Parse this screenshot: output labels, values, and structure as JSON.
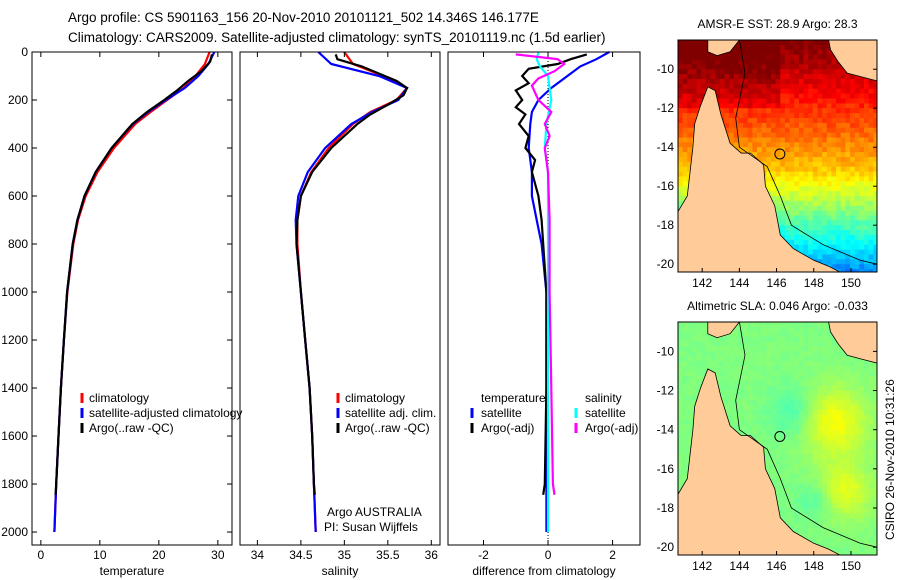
{
  "header": {
    "line1": "Argo profile: CS 5901163_156 20-Nov-2010 20101121_502 14.346S 146.177E",
    "line2": "Climatology: CARS2009. Satellite-adjusted climatology: synTS_20101119.nc (1.5d earlier)"
  },
  "side_stamp": "CSIRO 26-Nov-2010 10:31:26",
  "annotation": {
    "line1": "Argo AUSTRALIA",
    "line2": "PI: Susan Wijffels"
  },
  "colors": {
    "climatology": "#ff0000",
    "satellite": "#0000ff",
    "argo": "#000000",
    "sal_satellite": "#00ffff",
    "sal_argo": "#ff00ff",
    "land": "#ffcc99"
  },
  "chart_data": [
    {
      "type": "line",
      "xlabel": "temperature",
      "ylabel": "",
      "xlim": [
        -1.5,
        32.4
      ],
      "ylim": [
        0,
        2054
      ],
      "y_inverted": true,
      "xticks": [
        0,
        10,
        20,
        30
      ],
      "xtick_labels": [
        "0",
        "10",
        "20",
        "30"
      ],
      "yticks": [
        0,
        200,
        400,
        600,
        800,
        1000,
        1200,
        1400,
        1600,
        1800,
        2000
      ],
      "ytick_labels": [
        "0",
        "200",
        "400",
        "600",
        "800",
        "1000",
        "1200",
        "1400",
        "1600",
        "1800",
        "2000"
      ],
      "legend": [
        "climatology",
        "satellite-adjusted climatology",
        "Argo(..raw -QC)"
      ],
      "series": [
        {
          "name": "climatology",
          "color": "#ff0000",
          "p": [
            0,
            50,
            100,
            150,
            200,
            250,
            300,
            400,
            500,
            600,
            700,
            800,
            1000,
            1200,
            1400,
            1600,
            1800,
            2000
          ],
          "x": [
            28.6,
            27.8,
            26.2,
            24.2,
            21.4,
            18.6,
            16.0,
            12.4,
            9.6,
            7.6,
            6.3,
            5.5,
            4.5,
            3.9,
            3.4,
            3.0,
            2.6,
            2.3
          ]
        },
        {
          "name": "satellite-adjusted climatology",
          "color": "#0000ff",
          "p": [
            0,
            50,
            100,
            150,
            200,
            250,
            300,
            400,
            500,
            600,
            700,
            800,
            1000,
            1200,
            1400,
            1600,
            1800,
            2000
          ],
          "x": [
            29.4,
            28.4,
            26.7,
            24.4,
            21.2,
            18.2,
            15.6,
            12.0,
            9.3,
            7.4,
            6.2,
            5.4,
            4.45,
            3.9,
            3.4,
            3.0,
            2.6,
            2.3
          ]
        },
        {
          "name": "Argo(..raw -QC)",
          "color": "#000000",
          "p": [
            10,
            40,
            80,
            120,
            160,
            200,
            250,
            300,
            400,
            500,
            600,
            700,
            800,
            1000,
            1200,
            1400,
            1600,
            1800,
            1845
          ],
          "x": [
            29.0,
            28.7,
            27.2,
            25.0,
            23.1,
            20.9,
            18.0,
            15.5,
            12.0,
            9.3,
            7.4,
            6.2,
            5.4,
            4.45,
            3.9,
            3.4,
            3.0,
            2.6,
            2.5
          ]
        }
      ]
    },
    {
      "type": "line",
      "xlabel": "salinity",
      "xlim": [
        33.8,
        36.1
      ],
      "ylim": [
        0,
        2054
      ],
      "y_inverted": true,
      "xticks": [
        34,
        34.5,
        35,
        35.5,
        36
      ],
      "xtick_labels": [
        "34",
        "34.5",
        "35",
        "35.5",
        "36"
      ],
      "yticks": [],
      "ytick_labels": [],
      "legend": [
        "climatology",
        "satellite adj. clim.",
        "Argo(..raw -QC)"
      ],
      "series": [
        {
          "name": "climatology",
          "color": "#ff0000",
          "p": [
            0,
            50,
            100,
            150,
            200,
            250,
            300,
            400,
            500,
            600,
            700,
            800,
            1000,
            1200,
            1400,
            1600,
            1800,
            2000
          ],
          "x": [
            35.0,
            35.1,
            35.45,
            35.72,
            35.6,
            35.3,
            35.1,
            34.82,
            34.62,
            34.5,
            34.46,
            34.46,
            34.5,
            34.55,
            34.6,
            34.63,
            34.65,
            34.67
          ]
        },
        {
          "name": "satellite adj. clim.",
          "color": "#0000ff",
          "p": [
            0,
            50,
            100,
            150,
            200,
            250,
            300,
            400,
            500,
            600,
            700,
            800,
            1000,
            1200,
            1400,
            1600,
            1800,
            2000
          ],
          "x": [
            34.7,
            34.85,
            35.4,
            35.72,
            35.62,
            35.32,
            35.08,
            34.78,
            34.58,
            34.47,
            34.44,
            34.45,
            34.5,
            34.55,
            34.6,
            34.63,
            34.65,
            34.67
          ]
        },
        {
          "name": "Argo(..raw -QC)",
          "color": "#000000",
          "p": [
            10,
            30,
            60,
            90,
            120,
            150,
            180,
            220,
            260,
            300,
            400,
            500,
            600,
            700,
            800,
            1000,
            1200,
            1400,
            1600,
            1800,
            1845
          ],
          "x": [
            34.9,
            34.92,
            35.2,
            35.4,
            35.6,
            35.72,
            35.68,
            35.5,
            35.3,
            35.15,
            34.85,
            34.63,
            34.5,
            34.46,
            34.45,
            34.5,
            34.55,
            34.6,
            34.63,
            34.65,
            34.66
          ]
        }
      ]
    },
    {
      "type": "line",
      "xlabel": "difference from climatology",
      "xlim": [
        -3.1,
        2.85
      ],
      "ylim": [
        0,
        2054
      ],
      "y_inverted": true,
      "xticks": [
        -2,
        0,
        2
      ],
      "xtick_labels": [
        "-2",
        "0",
        "2"
      ],
      "yticks": [],
      "ytick_labels": [],
      "zero_line": true,
      "legend_groups": [
        {
          "title": "temperature",
          "items": [
            "satellite",
            "Argo(-adj)"
          ]
        },
        {
          "title": "salinity",
          "items": [
            "satellite",
            "Argo(-adj)"
          ]
        }
      ],
      "series": [
        {
          "name": "temperature satellite",
          "color": "#0000ff",
          "p": [
            0,
            30,
            60,
            100,
            150,
            200,
            250,
            300,
            400,
            500,
            600,
            700,
            800,
            1000,
            1500,
            2000
          ],
          "x": [
            1.9,
            1.5,
            1.0,
            0.6,
            0.1,
            -0.3,
            -0.5,
            -0.55,
            -0.6,
            -0.5,
            -0.5,
            -0.35,
            -0.2,
            -0.05,
            -0.05,
            -0.05
          ]
        },
        {
          "name": "temperature Argo(-adj)",
          "color": "#000000",
          "p": [
            10,
            30,
            50,
            70,
            100,
            130,
            160,
            200,
            230,
            260,
            300,
            350,
            400,
            450,
            500,
            600,
            700,
            800,
            1000,
            1400,
            1800,
            1845
          ],
          "x": [
            1.2,
            0.7,
            0.3,
            -0.6,
            -0.8,
            -0.6,
            -1.0,
            -0.8,
            -1.0,
            -0.7,
            -0.9,
            -0.6,
            -0.7,
            -0.4,
            -0.5,
            -0.3,
            -0.2,
            -0.15,
            -0.05,
            -0.05,
            -0.1,
            -0.15
          ]
        },
        {
          "name": "salinity satellite",
          "color": "#00ffff",
          "p": [
            0,
            30,
            60,
            100,
            150,
            200,
            300,
            400,
            500,
            600,
            800,
            1000,
            1500,
            2000
          ],
          "x": [
            -0.3,
            -0.35,
            -0.25,
            0.0,
            0.05,
            0.1,
            -0.05,
            -0.1,
            0.0,
            0.0,
            0.0,
            0.0,
            0.0,
            0.0
          ]
        },
        {
          "name": "salinity Argo(-adj)",
          "color": "#ff00ff",
          "p": [
            10,
            30,
            50,
            80,
            110,
            140,
            170,
            200,
            250,
            300,
            350,
            400,
            500,
            700,
            1000,
            1400,
            1800,
            1845
          ],
          "x": [
            -1.0,
            0.3,
            0.5,
            0.2,
            -0.3,
            -0.5,
            -0.4,
            -0.3,
            0.1,
            -0.1,
            0.05,
            -0.1,
            0.0,
            0.05,
            0.05,
            0.1,
            0.15,
            0.2
          ]
        }
      ]
    }
  ],
  "maps": [
    {
      "title": "AMSR-E SST: 28.9 Argo: 28.3",
      "field": "sst",
      "lon_ticks": [
        "142",
        "144",
        "146",
        "148",
        "150"
      ],
      "lat_ticks": [
        "-10",
        "-12",
        "-14",
        "-16",
        "-18",
        "-20"
      ],
      "marker": {
        "lon": 146.177,
        "lat": -14.346
      }
    },
    {
      "title": "Altimetric SLA: 0.046 Argo: -0.033",
      "field": "sla",
      "lon_ticks": [
        "142",
        "144",
        "146",
        "148",
        "150"
      ],
      "lat_ticks": [
        "-10",
        "-12",
        "-14",
        "-16",
        "-18",
        "-20"
      ],
      "marker": {
        "lon": 146.177,
        "lat": -14.346
      }
    }
  ]
}
